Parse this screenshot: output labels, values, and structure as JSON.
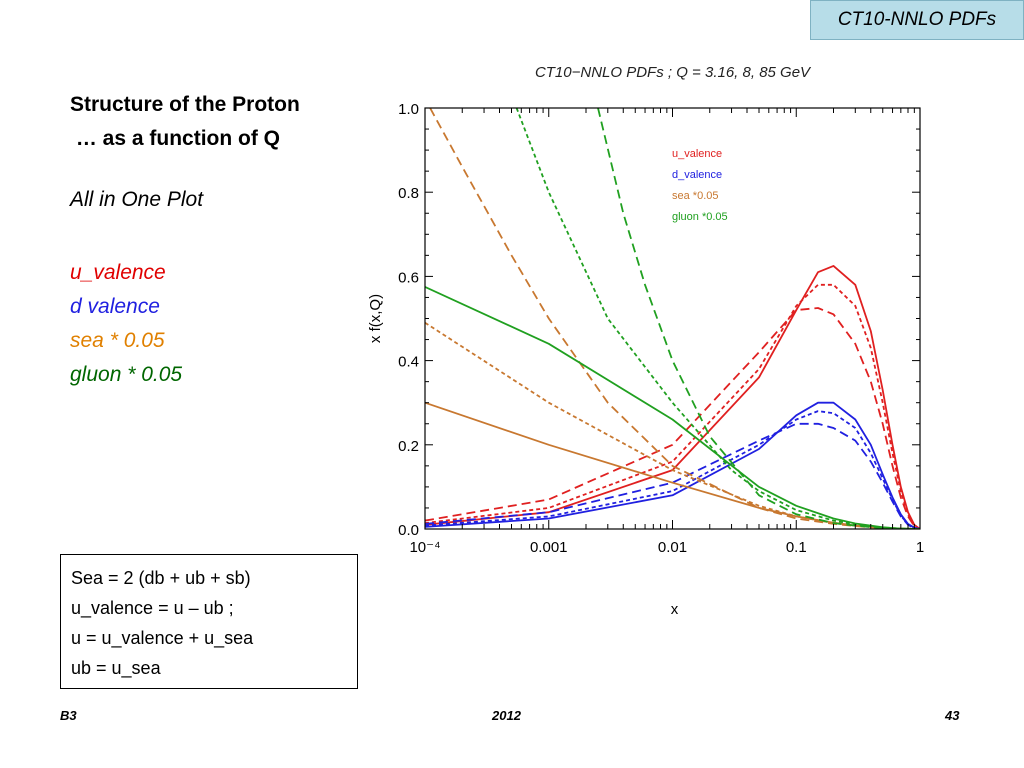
{
  "header_tag": "CT10-NNLO PDFs",
  "heading": {
    "line1": "Structure of the Proton",
    "line2": " … as a function of Q"
  },
  "subtitle": "All in One Plot",
  "legend_list": [
    {
      "text": "u_valence",
      "color": "#e00000"
    },
    {
      "text": "d valence",
      "color": "#2020e0"
    },
    {
      "text": "sea * 0.05",
      "color": "#e08000"
    },
    {
      "text": "gluon * 0.05",
      "color": "#006600"
    }
  ],
  "formula_box": [
    "Sea = 2 (db + ub + sb)",
    "u_valence = u – ub ;",
    "u = u_valence + u_sea",
    "ub = u_sea"
  ],
  "footer": {
    "left": "B3",
    "center": "2012",
    "right": "43"
  },
  "chart_data": {
    "type": "line",
    "title": "CT10−NNLO PDFs ; Q = 3.16, 8, 85 GeV",
    "xlabel": "x",
    "ylabel": "x f(x,Q)",
    "x_scale": "log",
    "xlim": [
      0.0001,
      1
    ],
    "ylim": [
      0,
      1.0
    ],
    "x_ticks": [
      "10⁻⁴",
      "0.001",
      "0.01",
      "0.1",
      "1"
    ],
    "y_ticks": [
      "0.0",
      "0.2",
      "0.4",
      "0.6",
      "0.8",
      "1.0"
    ],
    "legend_position": "top-right",
    "legend": [
      {
        "label": "u_valence",
        "color": "#e02020"
      },
      {
        "label": "d_valence",
        "color": "#2020e0"
      },
      {
        "label": "sea *0.05",
        "color": "#c87830"
      },
      {
        "label": "gluon *0.05",
        "color": "#20a020"
      }
    ],
    "styles": {
      "Q=3.16": "solid",
      "Q=8": "short-dash",
      "Q=85": "long-dash"
    },
    "series": [
      {
        "color": "#e02020",
        "dash": "solid",
        "x": [
          0.0001,
          0.001,
          0.01,
          0.05,
          0.1,
          0.15,
          0.2,
          0.3,
          0.4,
          0.5,
          0.6,
          0.7,
          0.8,
          0.9,
          1
        ],
        "y": [
          0.01,
          0.04,
          0.14,
          0.36,
          0.52,
          0.61,
          0.625,
          0.58,
          0.47,
          0.33,
          0.2,
          0.1,
          0.04,
          0.01,
          0
        ]
      },
      {
        "color": "#e02020",
        "dash": "short",
        "x": [
          0.0001,
          0.001,
          0.01,
          0.05,
          0.1,
          0.15,
          0.2,
          0.3,
          0.4,
          0.5,
          0.6,
          0.7,
          0.8,
          0.9,
          1
        ],
        "y": [
          0.014,
          0.05,
          0.16,
          0.38,
          0.53,
          0.58,
          0.58,
          0.53,
          0.43,
          0.3,
          0.18,
          0.09,
          0.035,
          0.008,
          0
        ]
      },
      {
        "color": "#e02020",
        "dash": "long",
        "x": [
          0.0001,
          0.001,
          0.01,
          0.05,
          0.1,
          0.15,
          0.2,
          0.3,
          0.4,
          0.5,
          0.6,
          0.7,
          0.8,
          0.9,
          1
        ],
        "y": [
          0.02,
          0.07,
          0.2,
          0.42,
          0.52,
          0.525,
          0.51,
          0.44,
          0.35,
          0.25,
          0.15,
          0.075,
          0.03,
          0.007,
          0
        ]
      },
      {
        "color": "#2020e0",
        "dash": "solid",
        "x": [
          0.0001,
          0.001,
          0.01,
          0.05,
          0.1,
          0.15,
          0.2,
          0.3,
          0.4,
          0.5,
          0.6,
          0.7,
          0.8,
          0.9,
          1
        ],
        "y": [
          0.005,
          0.025,
          0.08,
          0.19,
          0.27,
          0.3,
          0.3,
          0.26,
          0.2,
          0.13,
          0.075,
          0.035,
          0.012,
          0.003,
          0
        ]
      },
      {
        "color": "#2020e0",
        "dash": "short",
        "x": [
          0.0001,
          0.001,
          0.01,
          0.05,
          0.1,
          0.15,
          0.2,
          0.3,
          0.4,
          0.5,
          0.6,
          0.7,
          0.8,
          0.9,
          1
        ],
        "y": [
          0.008,
          0.03,
          0.09,
          0.2,
          0.26,
          0.28,
          0.275,
          0.24,
          0.18,
          0.12,
          0.07,
          0.032,
          0.011,
          0.003,
          0
        ]
      },
      {
        "color": "#2020e0",
        "dash": "long",
        "x": [
          0.0001,
          0.001,
          0.01,
          0.05,
          0.1,
          0.15,
          0.2,
          0.3,
          0.4,
          0.5,
          0.6,
          0.7,
          0.8,
          0.9,
          1
        ],
        "y": [
          0.012,
          0.04,
          0.11,
          0.21,
          0.25,
          0.25,
          0.24,
          0.21,
          0.16,
          0.11,
          0.065,
          0.03,
          0.01,
          0.002,
          0
        ]
      },
      {
        "color": "#c87830",
        "dash": "solid",
        "x": [
          0.0001,
          0.001,
          0.01,
          0.05,
          0.1,
          0.2,
          0.3,
          0.5,
          0.7,
          1
        ],
        "y": [
          0.3,
          0.2,
          0.11,
          0.05,
          0.03,
          0.015,
          0.008,
          0.003,
          0.001,
          0
        ]
      },
      {
        "color": "#c87830",
        "dash": "short",
        "x": [
          0.0001,
          0.001,
          0.01,
          0.05,
          0.1,
          0.2,
          0.3,
          0.5,
          0.7,
          1
        ],
        "y": [
          0.49,
          0.3,
          0.14,
          0.055,
          0.03,
          0.014,
          0.008,
          0.003,
          0.001,
          0
        ]
      },
      {
        "color": "#c87830",
        "dash": "long",
        "x": [
          0.00011,
          0.0002,
          0.0005,
          0.001,
          0.003,
          0.01,
          0.05,
          0.1,
          0.2,
          0.3,
          0.5,
          0.7,
          1
        ],
        "y": [
          1.0,
          0.86,
          0.65,
          0.5,
          0.3,
          0.15,
          0.05,
          0.025,
          0.012,
          0.007,
          0.002,
          0.001,
          0
        ]
      },
      {
        "color": "#20a020",
        "dash": "solid",
        "x": [
          0.0001,
          0.001,
          0.01,
          0.05,
          0.1,
          0.2,
          0.3,
          0.5,
          0.7,
          1
        ],
        "y": [
          0.575,
          0.44,
          0.26,
          0.1,
          0.055,
          0.025,
          0.013,
          0.004,
          0.001,
          0
        ]
      },
      {
        "color": "#20a020",
        "dash": "short",
        "x": [
          0.00055,
          0.001,
          0.003,
          0.01,
          0.03,
          0.05,
          0.1,
          0.2,
          0.3,
          0.5,
          0.7,
          1
        ],
        "y": [
          1.0,
          0.8,
          0.5,
          0.3,
          0.14,
          0.09,
          0.045,
          0.02,
          0.011,
          0.003,
          0.001,
          0
        ]
      },
      {
        "color": "#20a020",
        "dash": "long",
        "x": [
          0.0025,
          0.004,
          0.006,
          0.01,
          0.02,
          0.05,
          0.1,
          0.2,
          0.3,
          0.5,
          0.7,
          1
        ],
        "y": [
          1.0,
          0.75,
          0.58,
          0.4,
          0.22,
          0.08,
          0.035,
          0.014,
          0.008,
          0.002,
          0.0005,
          0
        ]
      }
    ]
  }
}
